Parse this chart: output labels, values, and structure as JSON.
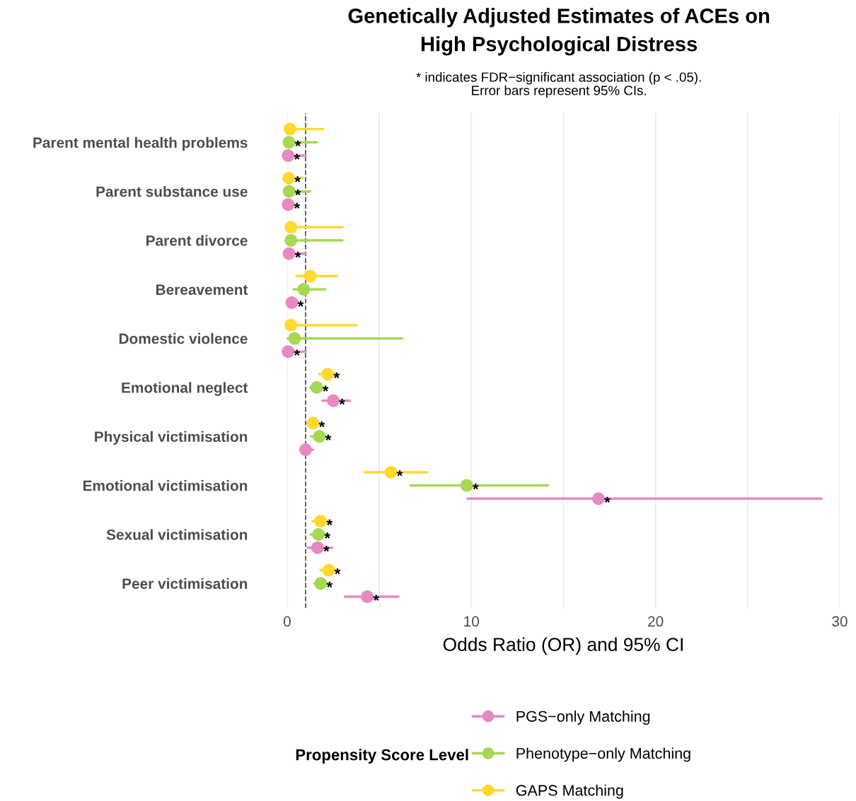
{
  "chart_data": {
    "type": "scatter",
    "orientation": "horizontal",
    "title": "Genetically Adjusted Estimates of ACEs on\nHigh Psychological Distress",
    "subtitle": "* indicates FDR−significant association (p < .05).\nError bars represent 95% CIs.",
    "xlabel": "Odds Ratio (OR) and 95% CI",
    "legend_title": "Propensity Score Level",
    "categories": [
      "Parent mental health problems",
      "Parent substance use",
      "Parent divorce",
      "Bereavement",
      "Domestic violence",
      "Emotional neglect",
      "Physical victimisation",
      "Emotional victimisation",
      "Sexual victimisation",
      "Peer victimisation"
    ],
    "series": [
      {
        "name": "PGS−only Matching",
        "color": "#e78ac3",
        "values": [
          0.05,
          0.05,
          0.1,
          0.25,
          0.05,
          2.5,
          1.0,
          16.9,
          1.65,
          4.35
        ],
        "errors": [
          [
            0.05,
            1.0
          ],
          [
            0.05,
            0.4
          ],
          [
            0.1,
            1.0
          ],
          [
            0.25,
            0.6
          ],
          [
            0.05,
            1.0
          ],
          [
            1.9,
            3.4
          ],
          [
            0.7,
            1.4
          ],
          [
            9.8,
            29.0
          ],
          [
            1.12,
            2.45
          ],
          [
            3.14,
            6.04
          ]
        ],
        "value_labels": [
          "*",
          "*",
          "*",
          "*",
          "*",
          "*",
          null,
          "*",
          "*",
          "*"
        ]
      },
      {
        "name": "Phenotype−only Matching",
        "color": "#a6d854",
        "values": [
          0.1,
          0.1,
          0.2,
          0.9,
          0.4,
          1.6,
          1.75,
          9.75,
          1.7,
          1.82
        ],
        "errors": [
          [
            0.1,
            1.6
          ],
          [
            0.1,
            1.25
          ],
          [
            0.2,
            3.0
          ],
          [
            0.35,
            2.05
          ],
          [
            0.03,
            6.25
          ],
          [
            1.25,
            2.1
          ],
          [
            1.3,
            2.25
          ],
          [
            6.7,
            14.15
          ],
          [
            1.27,
            2.2
          ],
          [
            1.47,
            2.2
          ]
        ],
        "value_labels": [
          "*",
          "*",
          null,
          null,
          null,
          "*",
          "*",
          "*",
          "*",
          "*"
        ]
      },
      {
        "name": "GAPS Matching",
        "color": "#ffd92f",
        "values": [
          0.15,
          0.08,
          0.2,
          1.25,
          0.2,
          2.2,
          1.4,
          5.63,
          1.82,
          2.25
        ],
        "errors": [
          [
            0.15,
            1.95
          ],
          [
            0.08,
            0.85
          ],
          [
            0.2,
            3.0
          ],
          [
            0.5,
            2.7
          ],
          [
            0.2,
            3.75
          ],
          [
            1.75,
            2.8
          ],
          [
            1.1,
            1.9
          ],
          [
            4.2,
            7.6
          ],
          [
            1.37,
            2.3
          ],
          [
            1.8,
            2.8
          ]
        ],
        "value_labels": [
          null,
          "*",
          null,
          null,
          null,
          "*",
          "*",
          "*",
          "*",
          "*"
        ]
      }
    ],
    "xlim": [
      0,
      30
    ],
    "xticks": [
      0,
      {
        "value": 5,
        "label": null
      },
      10,
      {
        "value": 15,
        "label": null
      },
      20,
      {
        "value": 25,
        "label": null
      },
      30
    ],
    "ref_lines": [
      {
        "axis": "x",
        "value": 1,
        "color": "#555555",
        "line_style": "dashed"
      }
    ],
    "grid": "x",
    "legend": "bottom",
    "marker": "circle",
    "line_style": "solid"
  }
}
